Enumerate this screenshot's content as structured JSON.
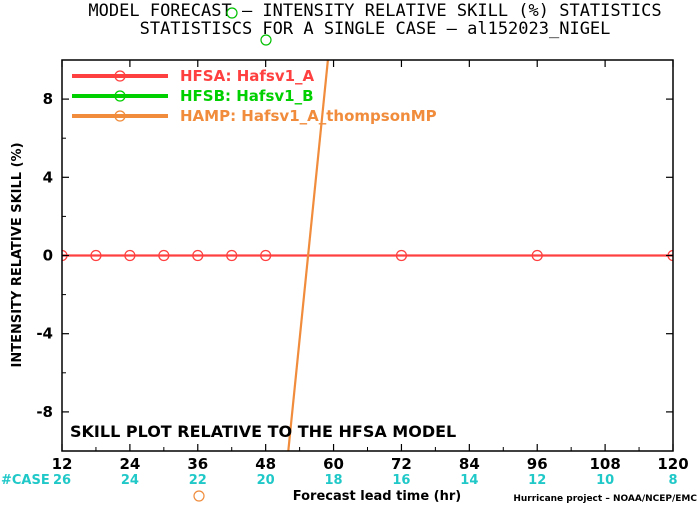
{
  "chart_data": {
    "type": "line",
    "title": "MODEL FORECAST – INTENSITY RELATIVE SKILL (%) STATISTICS",
    "subtitle": "STATISTISCS FOR A SINGLE CASE – al152023_NIGEL",
    "xlabel": "Forecast lead time (hr)",
    "ylabel": "INTENSITY RELATIVE SKILL (%)",
    "xlim": [
      12,
      120
    ],
    "ylim": [
      -10,
      10
    ],
    "xticks": [
      12,
      24,
      36,
      48,
      60,
      72,
      84,
      96,
      108,
      120
    ],
    "yticks": [
      -8,
      -4,
      0,
      4,
      8
    ],
    "case_label": "#CASE",
    "case_counts": [
      26,
      24,
      22,
      20,
      18,
      16,
      14,
      12,
      10,
      8
    ],
    "annotation": "SKILL PLOT RELATIVE TO THE HFSA MODEL",
    "credit": "Hurricane project – NOAA/NCEP/EMC",
    "grid": false,
    "legend_position": "top-left",
    "series": [
      {
        "name": "HFSA:  Hafsv1_A",
        "color": "#ff4040",
        "x": [
          12,
          18,
          24,
          30,
          36,
          42,
          48,
          72,
          96,
          120
        ],
        "y": [
          0,
          0,
          0,
          0,
          0,
          0,
          0,
          0,
          0,
          0
        ]
      },
      {
        "name": "HFSB:  Hafsv1_B",
        "color": "#00d000",
        "x": [],
        "y": []
      },
      {
        "name": "HAMP:  Hafsv1_A_thompsonMP",
        "color": "#f08c3c",
        "x": [
          52,
          59
        ],
        "y": [
          -10,
          10
        ]
      }
    ]
  }
}
